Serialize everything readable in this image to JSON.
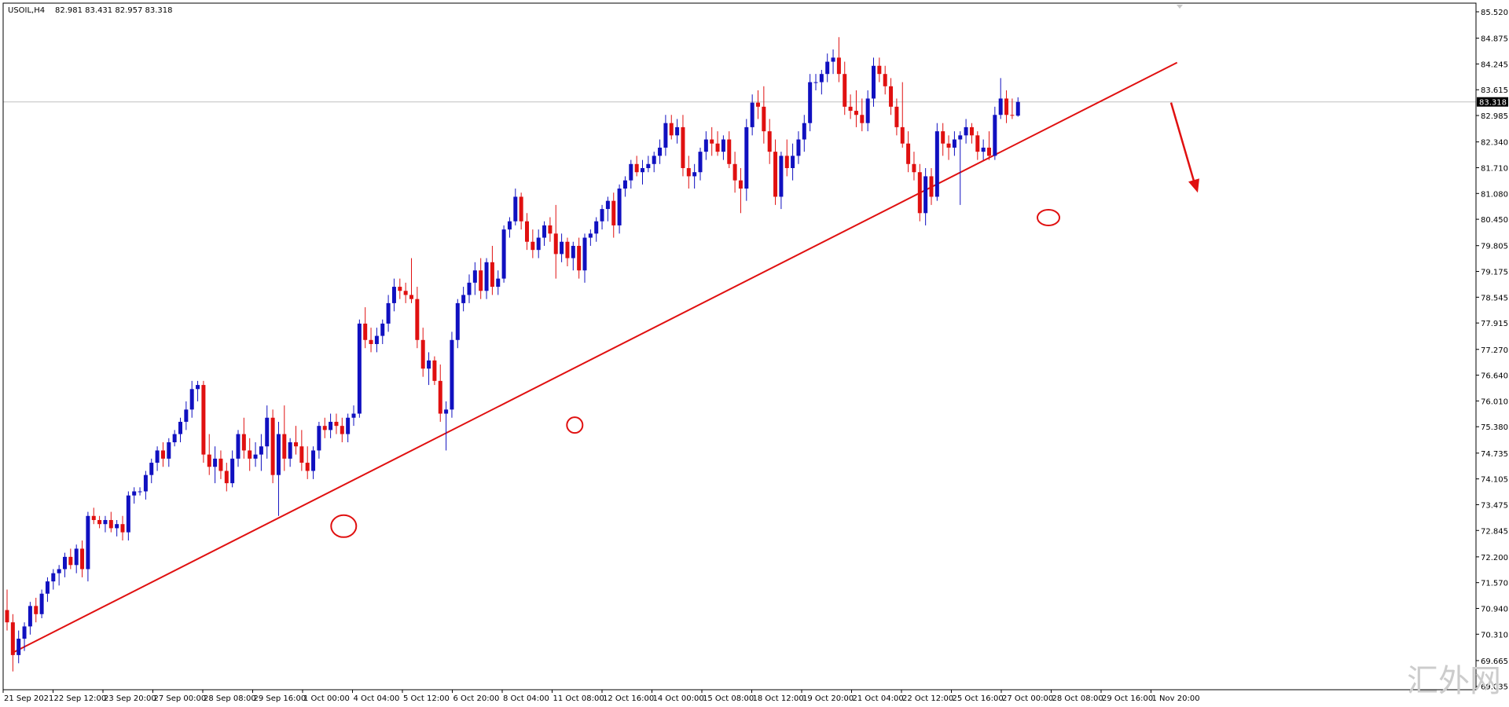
{
  "header": {
    "symbol_label": "USOIL,H4",
    "ohlc_label": "82.981 83.431 82.957 83.318"
  },
  "watermark": "汇外网",
  "colors": {
    "bull": "#1010c0",
    "bear": "#e01010",
    "trendline": "#e01010",
    "grid_current": "#c0c0c0",
    "axis": "#000000",
    "price_tag_bg": "#000000"
  },
  "chart_data": {
    "type": "candlestick",
    "symbol": "USOIL",
    "timeframe": "H4",
    "ylim": [
      69.03,
      85.52
    ],
    "y_ticks": [
      "85.520",
      "84.875",
      "84.245",
      "83.615",
      "82.985",
      "82.340",
      "81.710",
      "81.080",
      "80.450",
      "79.805",
      "79.175",
      "78.545",
      "77.915",
      "77.270",
      "76.640",
      "76.010",
      "75.380",
      "74.735",
      "74.105",
      "73.475",
      "72.845",
      "72.200",
      "71.570",
      "70.940",
      "70.310",
      "69.665",
      "69.035"
    ],
    "current_price": "83.318",
    "x_labels": [
      "21 Sep 2021",
      "22 Sep 12:00",
      "23 Sep 20:00",
      "27 Sep 00:00",
      "28 Sep 08:00",
      "29 Sep 16:00",
      "1 Oct 00:00",
      "4 Oct 04:00",
      "5 Oct 12:00",
      "6 Oct 20:00",
      "8 Oct 04:00",
      "11 Oct 08:00",
      "12 Oct 16:00",
      "14 Oct 00:00",
      "15 Oct 08:00",
      "18 Oct 12:00",
      "19 Oct 20:00",
      "21 Oct 04:00",
      "22 Oct 12:00",
      "25 Oct 16:00",
      "27 Oct 00:00",
      "28 Oct 08:00",
      "29 Oct 16:00",
      "1 Nov 20:00"
    ],
    "candles": [
      [
        70.9,
        71.4,
        70.4,
        70.6
      ],
      [
        70.6,
        70.8,
        69.4,
        69.8
      ],
      [
        69.8,
        70.4,
        69.6,
        70.2
      ],
      [
        70.2,
        70.6,
        69.9,
        70.5
      ],
      [
        70.5,
        71.1,
        70.3,
        71.0
      ],
      [
        71.0,
        71.2,
        70.6,
        70.8
      ],
      [
        70.8,
        71.4,
        70.7,
        71.3
      ],
      [
        71.3,
        71.7,
        71.1,
        71.6
      ],
      [
        71.6,
        71.9,
        71.4,
        71.8
      ],
      [
        71.8,
        72.0,
        71.5,
        71.9
      ],
      [
        71.9,
        72.3,
        71.7,
        72.2
      ],
      [
        72.2,
        72.4,
        71.9,
        72.0
      ],
      [
        72.0,
        72.5,
        71.8,
        72.4
      ],
      [
        72.4,
        72.6,
        71.7,
        71.9
      ],
      [
        71.9,
        73.3,
        71.6,
        73.2
      ],
      [
        73.2,
        73.4,
        73.0,
        73.1
      ],
      [
        73.1,
        73.2,
        72.9,
        73.0
      ],
      [
        73.0,
        73.2,
        72.8,
        73.1
      ],
      [
        73.1,
        73.3,
        72.8,
        72.9
      ],
      [
        72.9,
        73.1,
        72.7,
        73.0
      ],
      [
        73.0,
        73.2,
        72.6,
        72.8
      ],
      [
        72.8,
        73.8,
        72.6,
        73.7
      ],
      [
        73.7,
        73.9,
        73.5,
        73.8
      ],
      [
        73.8,
        73.9,
        73.7,
        73.8
      ],
      [
        73.8,
        74.3,
        73.6,
        74.2
      ],
      [
        74.2,
        74.6,
        74.0,
        74.5
      ],
      [
        74.5,
        74.9,
        74.3,
        74.8
      ],
      [
        74.8,
        75.0,
        74.4,
        74.6
      ],
      [
        74.6,
        75.1,
        74.4,
        75.0
      ],
      [
        75.0,
        75.3,
        74.9,
        75.2
      ],
      [
        75.2,
        75.6,
        75.0,
        75.5
      ],
      [
        75.5,
        76.0,
        75.3,
        75.8
      ],
      [
        75.8,
        76.5,
        75.6,
        76.3
      ],
      [
        76.3,
        76.5,
        76.0,
        76.4
      ],
      [
        76.4,
        76.5,
        74.5,
        74.7
      ],
      [
        74.7,
        75.2,
        74.2,
        74.4
      ],
      [
        74.4,
        74.9,
        74.0,
        74.6
      ],
      [
        74.6,
        74.8,
        74.1,
        74.3
      ],
      [
        74.3,
        74.5,
        73.8,
        74.0
      ],
      [
        74.0,
        74.8,
        73.9,
        74.6
      ],
      [
        74.6,
        75.3,
        74.4,
        75.2
      ],
      [
        75.2,
        75.6,
        74.6,
        74.8
      ],
      [
        74.8,
        75.1,
        74.3,
        74.6
      ],
      [
        74.6,
        75.0,
        74.4,
        74.7
      ],
      [
        74.7,
        75.2,
        74.3,
        74.9
      ],
      [
        74.9,
        75.9,
        74.6,
        75.6
      ],
      [
        75.6,
        75.8,
        74.0,
        74.2
      ],
      [
        74.2,
        75.5,
        73.2,
        75.2
      ],
      [
        75.2,
        75.9,
        74.3,
        74.6
      ],
      [
        74.6,
        75.1,
        74.4,
        75.0
      ],
      [
        75.0,
        75.4,
        74.7,
        74.9
      ],
      [
        74.9,
        75.3,
        74.3,
        74.5
      ],
      [
        74.5,
        74.9,
        74.1,
        74.3
      ],
      [
        74.3,
        74.9,
        74.1,
        74.8
      ],
      [
        74.8,
        75.5,
        74.6,
        75.4
      ],
      [
        75.4,
        75.6,
        75.1,
        75.3
      ],
      [
        75.3,
        75.7,
        75.1,
        75.5
      ],
      [
        75.5,
        75.7,
        75.2,
        75.4
      ],
      [
        75.4,
        75.6,
        75.0,
        75.2
      ],
      [
        75.2,
        75.7,
        75.0,
        75.6
      ],
      [
        75.6,
        75.9,
        75.4,
        75.7
      ],
      [
        75.7,
        78.0,
        75.6,
        77.9
      ],
      [
        77.9,
        78.3,
        77.3,
        77.5
      ],
      [
        77.5,
        77.8,
        77.2,
        77.4
      ],
      [
        77.4,
        77.8,
        77.2,
        77.6
      ],
      [
        77.6,
        78.0,
        77.4,
        77.9
      ],
      [
        77.9,
        78.6,
        77.7,
        78.4
      ],
      [
        78.4,
        79.0,
        78.2,
        78.8
      ],
      [
        78.8,
        79.0,
        78.5,
        78.7
      ],
      [
        78.7,
        78.9,
        78.4,
        78.6
      ],
      [
        78.6,
        79.5,
        78.4,
        78.5
      ],
      [
        78.5,
        78.8,
        77.3,
        77.5
      ],
      [
        77.5,
        77.8,
        76.6,
        76.8
      ],
      [
        76.8,
        77.2,
        76.4,
        77.0
      ],
      [
        77.0,
        77.1,
        76.4,
        76.5
      ],
      [
        76.5,
        76.9,
        75.5,
        75.7
      ],
      [
        75.7,
        76.0,
        74.8,
        75.8
      ],
      [
        75.8,
        77.7,
        75.6,
        77.5
      ],
      [
        77.5,
        78.5,
        77.3,
        78.4
      ],
      [
        78.4,
        78.8,
        78.2,
        78.6
      ],
      [
        78.6,
        79.1,
        78.4,
        78.9
      ],
      [
        78.9,
        79.4,
        78.6,
        79.2
      ],
      [
        79.2,
        79.5,
        78.5,
        78.7
      ],
      [
        78.7,
        79.5,
        78.5,
        79.4
      ],
      [
        79.4,
        79.8,
        78.6,
        78.8
      ],
      [
        78.8,
        79.2,
        78.6,
        79.0
      ],
      [
        79.0,
        80.3,
        78.9,
        80.2
      ],
      [
        80.2,
        80.5,
        80.0,
        80.4
      ],
      [
        80.4,
        81.2,
        80.3,
        81.0
      ],
      [
        81.0,
        81.1,
        80.2,
        80.4
      ],
      [
        80.4,
        80.6,
        79.7,
        79.9
      ],
      [
        79.9,
        80.2,
        79.5,
        79.7
      ],
      [
        79.7,
        80.2,
        79.5,
        80.0
      ],
      [
        80.0,
        80.4,
        79.8,
        80.3
      ],
      [
        80.3,
        80.5,
        79.9,
        80.1
      ],
      [
        80.1,
        80.8,
        79.0,
        79.6
      ],
      [
        79.6,
        80.1,
        79.4,
        79.9
      ],
      [
        79.9,
        80.0,
        79.3,
        79.5
      ],
      [
        79.5,
        79.9,
        79.2,
        79.8
      ],
      [
        79.8,
        80.0,
        79.0,
        79.2
      ],
      [
        79.2,
        80.1,
        78.9,
        80.0
      ],
      [
        80.0,
        80.2,
        79.8,
        80.1
      ],
      [
        80.1,
        80.5,
        79.9,
        80.4
      ],
      [
        80.4,
        80.8,
        80.2,
        80.7
      ],
      [
        80.7,
        81.0,
        80.4,
        80.9
      ],
      [
        80.9,
        81.1,
        80.0,
        80.3
      ],
      [
        80.3,
        81.3,
        80.1,
        81.2
      ],
      [
        81.2,
        81.5,
        81.0,
        81.4
      ],
      [
        81.4,
        81.9,
        81.2,
        81.8
      ],
      [
        81.8,
        82.0,
        81.5,
        81.6
      ],
      [
        81.6,
        81.9,
        81.3,
        81.7
      ],
      [
        81.7,
        82.0,
        81.6,
        81.8
      ],
      [
        81.8,
        82.1,
        81.6,
        82.0
      ],
      [
        82.0,
        82.4,
        81.8,
        82.2
      ],
      [
        82.2,
        83.0,
        82.0,
        82.8
      ],
      [
        82.8,
        83.0,
        82.4,
        82.5
      ],
      [
        82.5,
        82.9,
        82.3,
        82.7
      ],
      [
        82.7,
        83.0,
        81.5,
        81.7
      ],
      [
        81.7,
        82.0,
        81.2,
        81.5
      ],
      [
        81.5,
        81.8,
        81.2,
        81.6
      ],
      [
        81.6,
        82.2,
        81.4,
        82.1
      ],
      [
        82.1,
        82.6,
        81.9,
        82.4
      ],
      [
        82.4,
        82.7,
        82.0,
        82.3
      ],
      [
        82.3,
        82.6,
        82.0,
        82.1
      ],
      [
        82.1,
        82.5,
        81.9,
        82.4
      ],
      [
        82.4,
        82.6,
        81.7,
        81.8
      ],
      [
        81.8,
        82.1,
        81.1,
        81.4
      ],
      [
        81.4,
        81.7,
        80.6,
        81.2
      ],
      [
        81.2,
        82.9,
        80.9,
        82.7
      ],
      [
        82.7,
        83.5,
        82.5,
        83.3
      ],
      [
        83.3,
        83.6,
        82.9,
        83.2
      ],
      [
        83.2,
        83.7,
        82.3,
        82.6
      ],
      [
        82.6,
        82.9,
        81.8,
        82.1
      ],
      [
        82.1,
        82.4,
        80.8,
        81.0
      ],
      [
        81.0,
        82.1,
        80.7,
        82.0
      ],
      [
        82.0,
        82.4,
        81.5,
        81.7
      ],
      [
        81.7,
        82.3,
        81.4,
        82.0
      ],
      [
        82.0,
        82.6,
        81.8,
        82.4
      ],
      [
        82.4,
        83.0,
        82.1,
        82.8
      ],
      [
        82.8,
        84.0,
        82.6,
        83.8
      ],
      [
        83.8,
        84.0,
        83.6,
        83.8
      ],
      [
        83.8,
        84.1,
        83.5,
        84.0
      ],
      [
        84.0,
        84.5,
        83.8,
        84.3
      ],
      [
        84.3,
        84.6,
        84.0,
        84.4
      ],
      [
        84.4,
        84.9,
        83.8,
        84.0
      ],
      [
        84.0,
        84.3,
        83.0,
        83.2
      ],
      [
        83.2,
        83.5,
        82.9,
        83.1
      ],
      [
        83.1,
        83.6,
        82.7,
        83.0
      ],
      [
        83.0,
        83.4,
        82.6,
        82.8
      ],
      [
        82.8,
        83.6,
        82.6,
        83.4
      ],
      [
        83.4,
        84.4,
        83.2,
        84.2
      ],
      [
        84.2,
        84.4,
        83.8,
        84.0
      ],
      [
        84.0,
        84.2,
        83.5,
        83.7
      ],
      [
        83.7,
        83.9,
        83.0,
        83.2
      ],
      [
        83.2,
        83.4,
        82.5,
        82.7
      ],
      [
        82.7,
        83.8,
        82.2,
        82.3
      ],
      [
        82.3,
        82.6,
        81.6,
        81.8
      ],
      [
        81.8,
        82.1,
        81.4,
        81.6
      ],
      [
        81.6,
        81.8,
        80.4,
        80.6
      ],
      [
        80.6,
        81.7,
        80.3,
        81.5
      ],
      [
        81.5,
        81.7,
        80.8,
        81.0
      ],
      [
        81.0,
        82.8,
        80.9,
        82.6
      ],
      [
        82.6,
        82.8,
        82.0,
        82.3
      ],
      [
        82.3,
        82.5,
        81.9,
        82.2
      ],
      [
        82.2,
        82.6,
        82.0,
        82.4
      ],
      [
        82.4,
        82.6,
        80.8,
        82.5
      ],
      [
        82.5,
        82.9,
        82.3,
        82.7
      ],
      [
        82.7,
        82.8,
        82.3,
        82.5
      ],
      [
        82.5,
        82.6,
        81.9,
        82.1
      ],
      [
        82.1,
        82.4,
        81.9,
        82.2
      ],
      [
        82.2,
        82.6,
        81.9,
        82.0
      ],
      [
        82.0,
        83.2,
        81.9,
        83.0
      ],
      [
        83.0,
        83.9,
        82.9,
        83.4
      ],
      [
        83.4,
        83.6,
        82.8,
        83.0
      ],
      [
        83.0,
        83.4,
        82.9,
        82.98
      ],
      [
        82.981,
        83.431,
        82.957,
        83.318
      ]
    ],
    "trendline": [
      [
        70.0,
        0
      ],
      [
        84.28,
        202
      ]
    ],
    "touch_markers": [
      [
        72.95,
        58
      ],
      [
        75.42,
        98
      ],
      [
        80.49,
        180
      ]
    ],
    "arrow": {
      "from": [
        83.3,
        203
      ],
      "to": [
        81.1,
        206
      ]
    }
  }
}
